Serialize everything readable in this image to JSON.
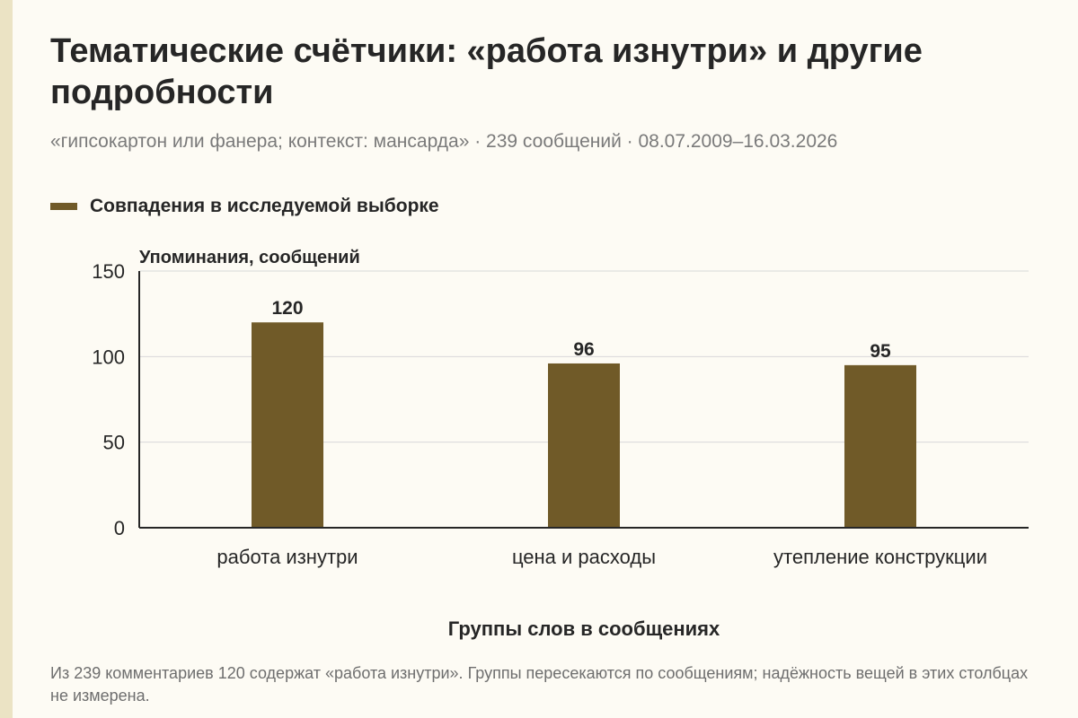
{
  "header": {
    "title": "Тематические счётчики: «работа изнутри» и другие подробности",
    "subtitle": "«гипсокартон или фанера; контекст: мансарда» · 239 сообщений · 08.07.2009–16.03.2026"
  },
  "footnote": "Из 239 комментариев 120 содержат «работа изнутри». Группы пересекаются по сообщениям; надёжность вещей в этих столбцах не измерена.",
  "colors": {
    "bar": "#705a28",
    "grid": "#d8d8d8",
    "axis": "#262626",
    "background": "#fdfbf4"
  },
  "chart_data": {
    "type": "bar",
    "title": "Тематические счётчики: «работа изнутри» и другие подробности",
    "ylabel": "Упоминания, сообщений",
    "xlabel": "Группы слов в сообщениях",
    "categories": [
      "работа изнутри",
      "цена и расходы",
      "утепление конструкции"
    ],
    "series": [
      {
        "name": "Совпадения в исследуемой выборке",
        "values": [
          120,
          96,
          95
        ]
      }
    ],
    "ylim": [
      0,
      150
    ],
    "yticks": [
      0,
      50,
      100,
      150
    ],
    "grid": true,
    "legend": "top-left",
    "data_labels": true
  }
}
